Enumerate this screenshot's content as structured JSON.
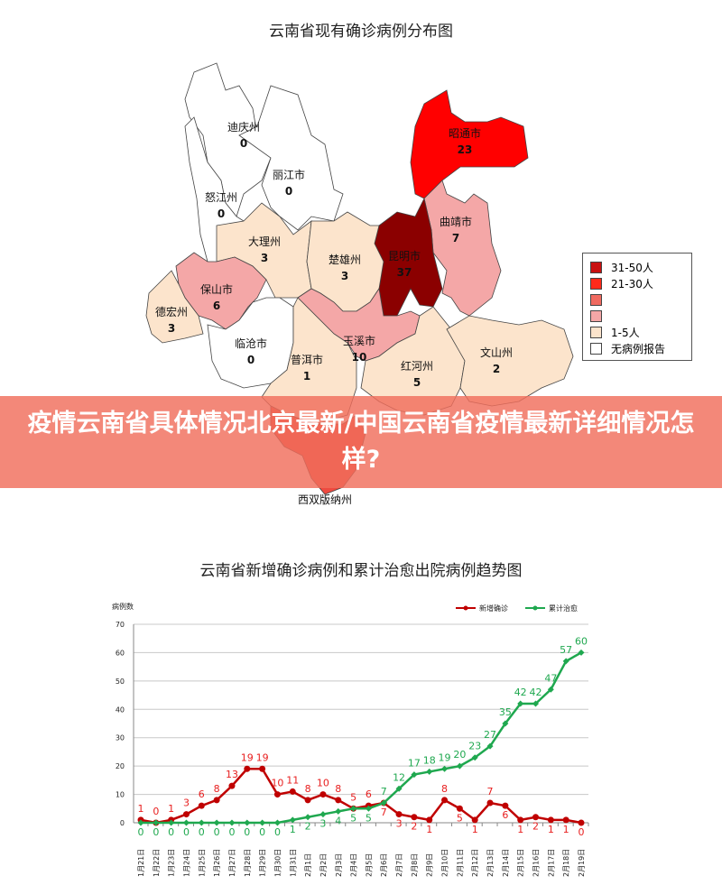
{
  "map": {
    "title": "云南省现有确诊病例分布图",
    "regions": [
      {
        "name": "迪庆州",
        "value": 0,
        "color": "#ffffff"
      },
      {
        "name": "丽江市",
        "value": 0,
        "color": "#ffffff"
      },
      {
        "name": "怒江州",
        "value": 0,
        "color": "#ffffff"
      },
      {
        "name": "昭通市",
        "value": 23,
        "color": "#ff0000"
      },
      {
        "name": "曲靖市",
        "value": 7,
        "color": "#f4a7a7"
      },
      {
        "name": "昆明市",
        "value": 37,
        "color": "#8b0000"
      },
      {
        "name": "大理州",
        "value": 3,
        "color": "#fce4cc"
      },
      {
        "name": "楚雄州",
        "value": 3,
        "color": "#fce4cc"
      },
      {
        "name": "保山市",
        "value": 6,
        "color": "#f4a7a7"
      },
      {
        "name": "德宏州",
        "value": 3,
        "color": "#fce4cc"
      },
      {
        "name": "临沧市",
        "value": 0,
        "color": "#ffffff"
      },
      {
        "name": "玉溪市",
        "value": 10,
        "color": "#f4a7a7"
      },
      {
        "name": "普洱市",
        "value": 1,
        "color": "#fce4cc"
      },
      {
        "name": "红河州",
        "value": 5,
        "color": "#fce4cc"
      },
      {
        "name": "文山州",
        "value": 2,
        "color": "#fce4cc"
      },
      {
        "name": "西双版纳州",
        "value": null,
        "color": "#ee4a40"
      }
    ],
    "legend": [
      {
        "label": "31-50人",
        "color": "#c81010"
      },
      {
        "label": "21-30人",
        "color": "#ff2a1a"
      },
      {
        "label": "",
        "color": "#f06a60"
      },
      {
        "label": "",
        "color": "#f4a7a7"
      },
      {
        "label": "1-5人",
        "color": "#fce4cc"
      },
      {
        "label": "无病例报告",
        "color": "#ffffff"
      }
    ]
  },
  "banner": {
    "text": "疫情云南省具体情况北京最新/中国云南省疫情最新详细情况怎样?"
  },
  "chart_data": {
    "type": "line",
    "title": "云南省新增确诊病例和累计治愈出院病例趋势图",
    "ylabel": "病例数",
    "xlabel": "",
    "ylim": [
      0,
      70
    ],
    "yticks": [
      0,
      10,
      20,
      30,
      40,
      50,
      60,
      70
    ],
    "grid": true,
    "legend_position": "top-right",
    "categories": [
      "1月21日",
      "1月22日",
      "1月23日",
      "1月24日",
      "1月25日",
      "1月26日",
      "1月27日",
      "1月28日",
      "1月29日",
      "1月30日",
      "1月31日",
      "2月1日",
      "2月2日",
      "2月3日",
      "2月4日",
      "2月5日",
      "2月6日",
      "2月7日",
      "2月8日",
      "2月9日",
      "2月10日",
      "2月11日",
      "2月12日",
      "2月13日",
      "2月14日",
      "2月15日",
      "2月16日",
      "2月17日",
      "2月18日",
      "2月19日"
    ],
    "series": [
      {
        "name": "新增确诊",
        "color": "#c00000",
        "values": [
          1,
          0,
          1,
          3,
          6,
          8,
          13,
          19,
          19,
          10,
          11,
          8,
          10,
          8,
          5,
          6,
          7,
          3,
          2,
          1,
          8,
          5,
          1,
          7,
          6,
          1,
          2,
          1,
          1,
          0
        ]
      },
      {
        "name": "累计治愈",
        "color": "#1fa84f",
        "values": [
          0,
          0,
          0,
          0,
          0,
          0,
          0,
          0,
          0,
          0,
          1,
          2,
          3,
          4,
          5,
          5,
          7,
          12,
          17,
          18,
          19,
          20,
          23,
          27,
          35,
          42,
          42,
          47,
          57,
          60
        ]
      }
    ]
  }
}
